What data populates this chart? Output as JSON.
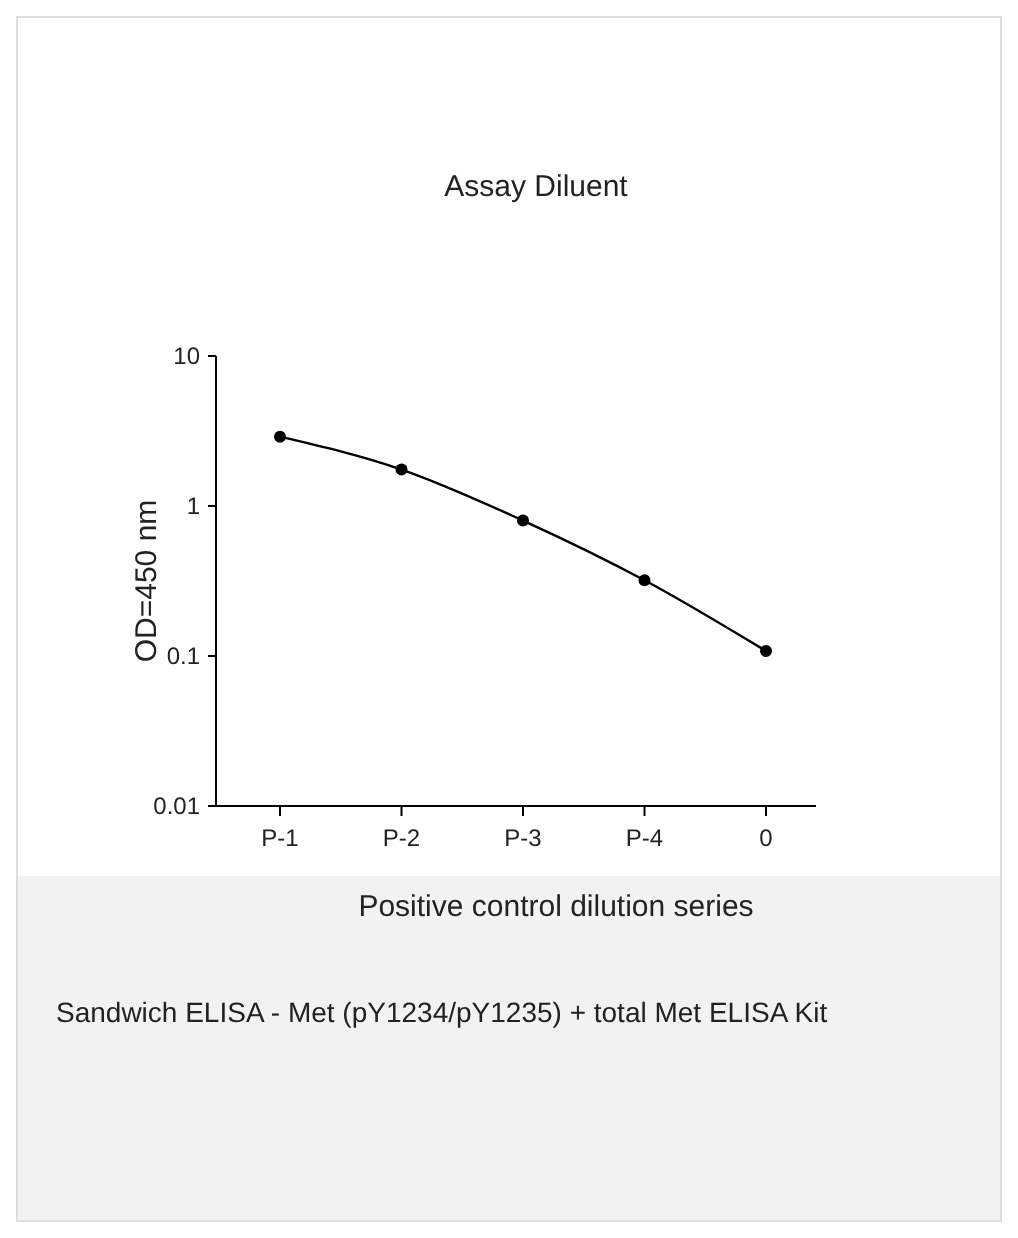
{
  "chart_data": {
    "type": "line",
    "title": "Assay Diluent",
    "xlabel": "Positive control dilution series",
    "ylabel": "OD=450 nm",
    "categories": [
      "P-1",
      "P-2",
      "P-3",
      "P-4",
      "0"
    ],
    "series": [
      {
        "color": "#000000",
        "values": [
          2.9,
          1.75,
          0.8,
          0.32,
          0.108
        ]
      }
    ],
    "log": true,
    "ylim": [
      0.01,
      10
    ],
    "yticks": [
      0.01,
      0.1,
      1,
      10
    ],
    "marker": "circle",
    "line_style": "solid",
    "grid": false,
    "annotations": [
      "Sandwich ELISA - Met (pY1234/pY1235) + total Met ELISA Kit"
    ]
  }
}
